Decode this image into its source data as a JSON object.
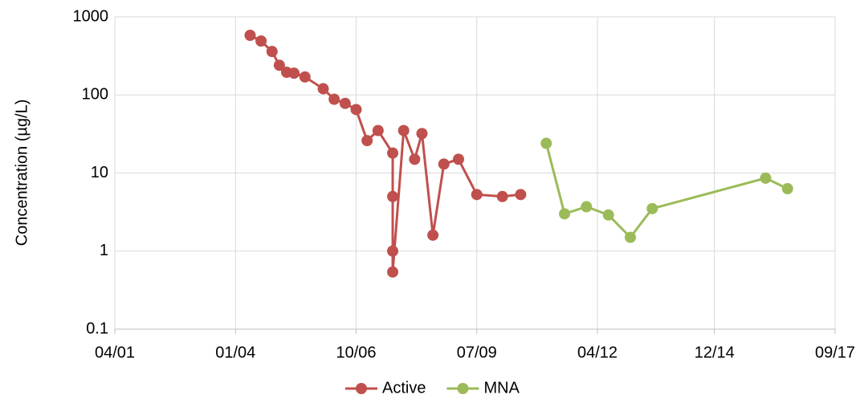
{
  "chart_data": {
    "type": "line",
    "y_label": "Concentration (µg/L)",
    "log_y": true,
    "grid": true,
    "legend": "bottom",
    "xlim": [
      "2001-04",
      "2017-09"
    ],
    "xticks": [
      {
        "value": "2001-04",
        "label": "04/01"
      },
      {
        "value": "2004-01",
        "label": "01/04"
      },
      {
        "value": "2006-10",
        "label": "10/06"
      },
      {
        "value": "2009-07",
        "label": "07/09"
      },
      {
        "value": "2012-04",
        "label": "04/12"
      },
      {
        "value": "2014-12",
        "label": "12/14"
      },
      {
        "value": "2017-09",
        "label": "09/17"
      }
    ],
    "ylim": [
      0.1,
      1000
    ],
    "yticks": [
      0.1,
      1,
      10,
      100,
      1000
    ],
    "series": [
      {
        "name": "Active",
        "color": "#c0504d",
        "x": [
          "2004-05",
          "2004-08",
          "2004-11",
          "2005-01",
          "2005-03",
          "2005-05",
          "2005-08",
          "2006-01",
          "2006-04",
          "2006-07",
          "2006-10",
          "2007-01",
          "2007-04",
          "2007-08",
          "2007-08",
          "2007-08",
          "2007-08",
          "2007-11",
          "2008-02",
          "2008-04",
          "2008-07",
          "2008-10",
          "2009-02",
          "2009-07",
          "2010-02",
          "2010-07"
        ],
        "values": [
          580,
          490,
          360,
          240,
          195,
          190,
          170,
          120,
          88,
          78,
          65,
          26,
          35,
          18,
          5,
          1,
          0.54,
          35,
          15,
          32,
          1.6,
          13,
          15,
          5.3,
          5,
          5.3
        ]
      },
      {
        "name": "MNA",
        "color": "#9bbb59",
        "x": [
          "2011-02",
          "2011-07",
          "2012-01",
          "2012-07",
          "2013-01",
          "2013-07",
          "2016-02",
          "2016-08"
        ],
        "values": [
          24,
          3,
          3.7,
          2.9,
          1.5,
          3.5,
          8.6,
          6.3
        ]
      }
    ]
  }
}
